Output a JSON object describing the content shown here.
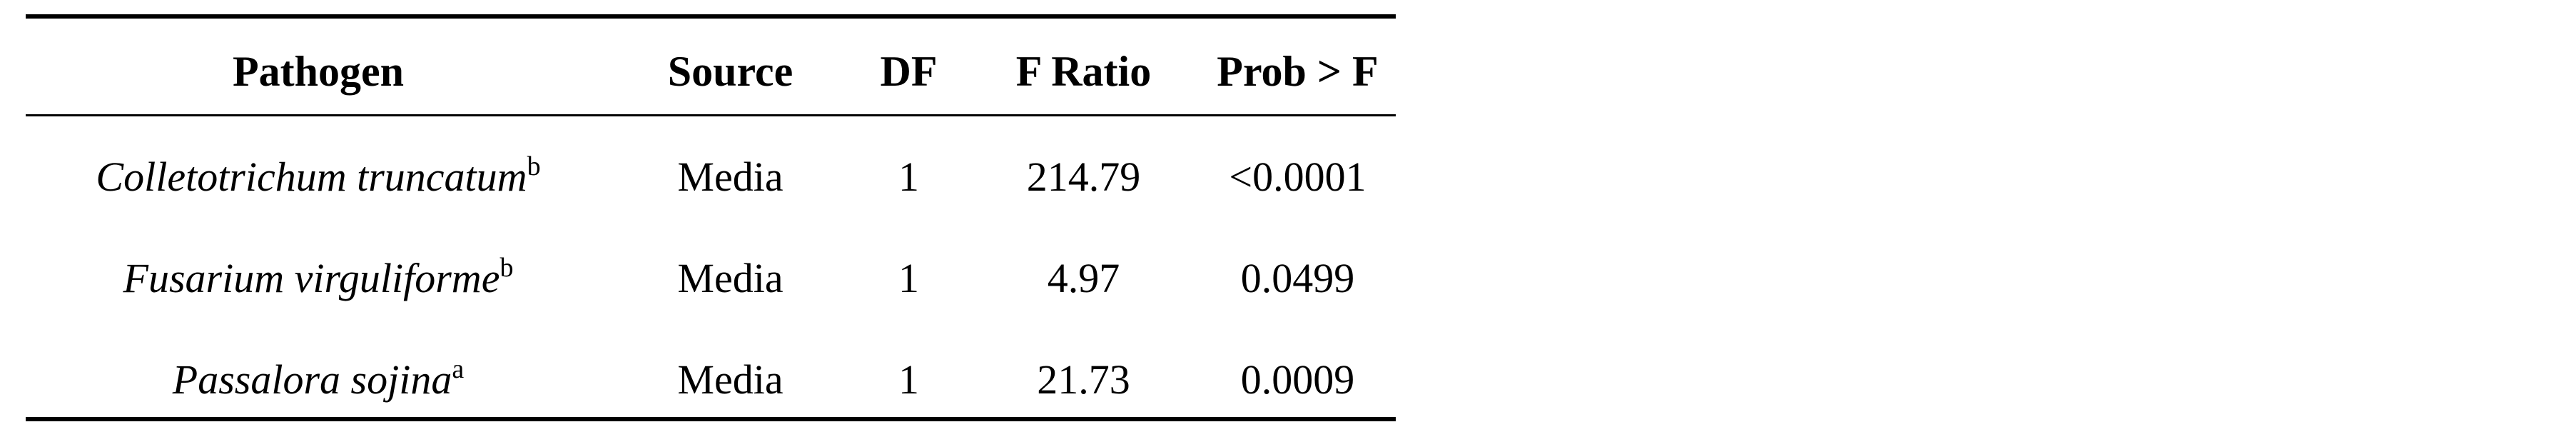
{
  "table": {
    "headers": {
      "pathogen": "Pathogen",
      "source": "Source",
      "df": "DF",
      "f_ratio": "F Ratio",
      "prob": "Prob > F"
    },
    "rows": [
      {
        "pathogen": "Colletotrichum truncatum",
        "note": "b",
        "source": "Media",
        "df": "1",
        "f_ratio": "214.79",
        "prob": "<0.0001"
      },
      {
        "pathogen": "Fusarium virguliforme",
        "note": "b",
        "source": "Media",
        "df": "1",
        "f_ratio": "4.97",
        "prob": "0.0499"
      },
      {
        "pathogen": "Passalora sojina",
        "note": "a",
        "source": "Media",
        "df": "1",
        "f_ratio": "21.73",
        "prob": "0.0009"
      }
    ]
  }
}
